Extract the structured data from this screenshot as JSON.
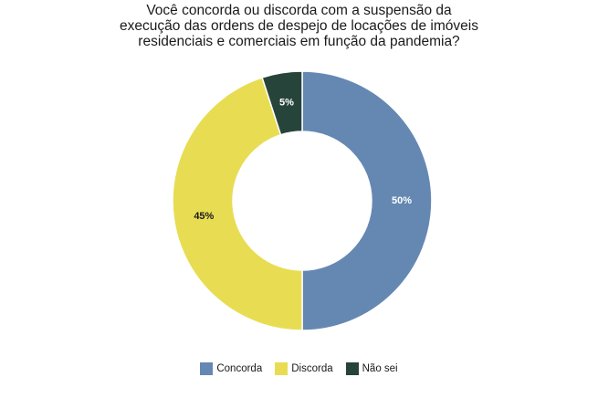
{
  "chart_data": {
    "type": "pie",
    "variant": "donut",
    "title_lines": [
      "Você concorda ou discorda com a suspensão da",
      "execução das ordens de despejo de locações de imóveis",
      "residenciais e comerciais em função da pandemia?"
    ],
    "slices": [
      {
        "label": "Concorda",
        "value": 50,
        "display": "50%",
        "color": "#6588b3",
        "label_color": "#ffffff"
      },
      {
        "label": "Discorda",
        "value": 45,
        "display": "45%",
        "color": "#e8dd52",
        "label_color": "#1a1a1a"
      },
      {
        "label": "Não sei",
        "value": 5,
        "display": "5%",
        "color": "#27443a",
        "label_color": "#ffffff"
      }
    ],
    "legend_position": "bottom"
  }
}
